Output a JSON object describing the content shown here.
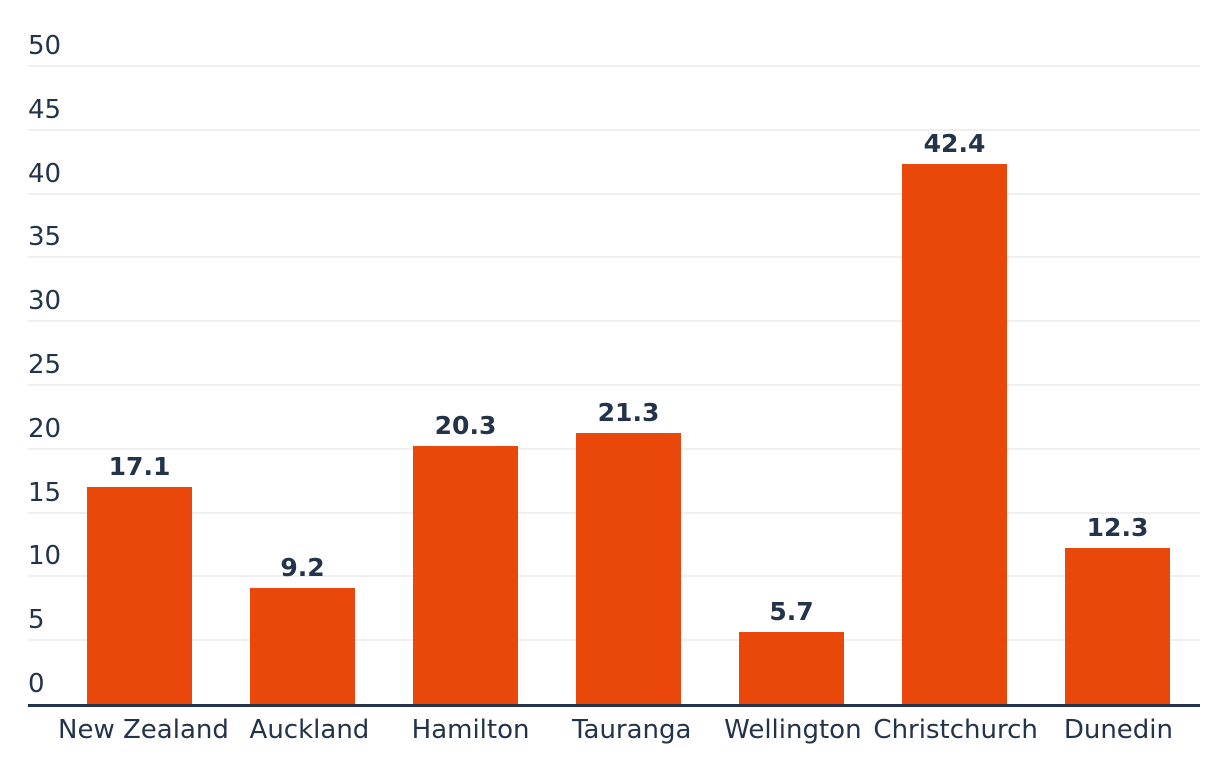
{
  "chart_data": {
    "type": "bar",
    "categories": [
      "New Zealand",
      "Auckland",
      "Hamilton",
      "Tauranga",
      "Wellington",
      "Christchurch",
      "Dunedin"
    ],
    "values": [
      17.1,
      9.2,
      20.3,
      21.3,
      5.7,
      42.4,
      12.3
    ],
    "value_labels": [
      "17.1",
      "9.2",
      "20.3",
      "21.3",
      "5.7",
      "42.4",
      "12.3"
    ],
    "title": "",
    "xlabel": "",
    "ylabel": "",
    "ylim": [
      0,
      50
    ],
    "yticks": [
      0,
      5,
      10,
      15,
      20,
      25,
      30,
      35,
      40,
      45,
      50
    ],
    "ytick_labels": [
      "0",
      "5",
      "10",
      "15",
      "20",
      "25",
      "30",
      "35",
      "40",
      "45",
      "50"
    ],
    "grid": true,
    "legend": false,
    "colors": {
      "bar": "#ea470a",
      "text": "#22334a",
      "axis_line": "#24334a",
      "gridline": "#efefef",
      "background": "#ffffff"
    }
  }
}
